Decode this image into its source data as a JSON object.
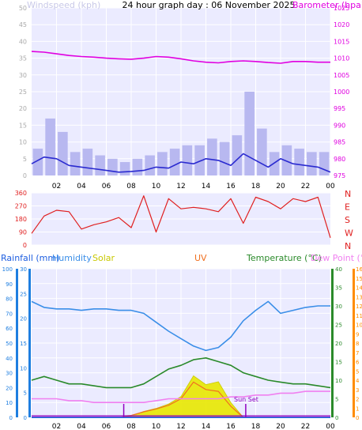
{
  "header": {
    "windspeed_label": "Windspeed (kph)",
    "title": "24 hour graph day : 06 November 2025",
    "barometer_label": "Barometer (hpa)"
  },
  "legend_lower": {
    "rainfall": "Rainfall (mm)",
    "humidity": "Humidity",
    "solar": "Solar",
    "uv": "UV",
    "temperature": "Temperature (°C)",
    "dewpoint": "Dew Point (°C)"
  },
  "annotation": {
    "sunset": "Sun Set"
  },
  "colors": {
    "background": "#ffffff",
    "plot_bg": "#ebebff",
    "grid": "#ffffff",
    "pink": "#e000e0",
    "wind_avg": "#2a2ad0",
    "wind_gust": "#b8b8f0",
    "direction": "#e02020",
    "humidity": "#3a8ee8",
    "solar": "#e8e800",
    "uv": "#f07020",
    "temperature": "#2a8a2a",
    "dewpoint": "#f080f0",
    "rain_axis": "#1e7ee0",
    "uv_axis": "#ff8c00",
    "sun_marker": "#9000c0"
  },
  "chart_data": [
    {
      "id": "wind_pressure",
      "type": "line",
      "title": "24 hour graph day : 06 November 2025",
      "x_ticks": [
        "02",
        "04",
        "06",
        "08",
        "10",
        "12",
        "14",
        "16",
        "18",
        "20",
        "22",
        "00"
      ],
      "x_hours": [
        0,
        1,
        2,
        3,
        4,
        5,
        6,
        7,
        8,
        9,
        10,
        11,
        12,
        13,
        14,
        15,
        16,
        17,
        18,
        19,
        20,
        21,
        22,
        23,
        24
      ],
      "left_axis": {
        "label": "Windspeed (kph)",
        "ticks": [
          0,
          5,
          10,
          15,
          20,
          25,
          30,
          35,
          40,
          45,
          50
        ],
        "range": [
          0,
          50
        ]
      },
      "right_axis": {
        "label": "Barometer (hpa)",
        "ticks": [
          975,
          980,
          985,
          990,
          995,
          1000,
          1005,
          1010,
          1015,
          1020,
          1025
        ],
        "range": [
          975,
          1025
        ]
      },
      "series": [
        {
          "name": "Barometer",
          "axis": "right",
          "values": [
            1012,
            1011.8,
            1011.3,
            1010.8,
            1010.5,
            1010.3,
            1010,
            1009.8,
            1009.7,
            1010,
            1010.5,
            1010.3,
            1009.8,
            1009.2,
            1008.8,
            1008.6,
            1009.0,
            1009.2,
            1009.0,
            1008.7,
            1008.5,
            1009.0,
            1009.0,
            1008.8,
            1008.8
          ]
        },
        {
          "name": "Wind avg",
          "axis": "left",
          "values": [
            3.5,
            5.5,
            5.0,
            3.0,
            2.5,
            2.0,
            1.5,
            1.0,
            1.2,
            1.5,
            2.5,
            2.2,
            4.0,
            3.5,
            5.0,
            4.5,
            3.0,
            6.5,
            4.5,
            2.5,
            5.0,
            3.5,
            3.0,
            2.5,
            1.0
          ]
        },
        {
          "name": "Wind gust",
          "axis": "left",
          "values": [
            8,
            17,
            13,
            7,
            8,
            6,
            5,
            4,
            5,
            6,
            7,
            8,
            9,
            9,
            11,
            10,
            12,
            25,
            14,
            7,
            9,
            8,
            7,
            7,
            6
          ]
        }
      ]
    },
    {
      "id": "wind_direction",
      "type": "line",
      "x_hours": [
        0,
        1,
        2,
        3,
        4,
        5,
        6,
        7,
        8,
        9,
        10,
        11,
        12,
        13,
        14,
        15,
        16,
        17,
        18,
        19,
        20,
        21,
        22,
        23,
        24
      ],
      "left_axis": {
        "ticks": [
          0,
          90,
          180,
          270,
          360
        ],
        "range": [
          0,
          360
        ]
      },
      "right_axis": {
        "ticks": [
          "N",
          "W",
          "S",
          "E",
          "N"
        ]
      },
      "series": [
        {
          "name": "Direction",
          "values": [
            80,
            200,
            240,
            230,
            110,
            140,
            160,
            190,
            120,
            340,
            90,
            320,
            250,
            260,
            250,
            230,
            320,
            150,
            330,
            300,
            250,
            320,
            300,
            330,
            50
          ]
        }
      ]
    },
    {
      "id": "temp_humidity",
      "type": "line",
      "x_ticks": [
        "02",
        "04",
        "06",
        "08",
        "10",
        "12",
        "14",
        "16",
        "18",
        "20",
        "22",
        "00"
      ],
      "x_hours": [
        0,
        1,
        2,
        3,
        4,
        5,
        6,
        7,
        8,
        9,
        10,
        11,
        12,
        13,
        14,
        15,
        16,
        17,
        18,
        19,
        20,
        21,
        22,
        23,
        24
      ],
      "humidity_axis": {
        "label": "Humidity",
        "ticks": [
          0,
          10,
          20,
          30,
          40,
          50,
          60,
          70,
          80,
          90,
          100
        ],
        "range": [
          0,
          100
        ]
      },
      "rain_axis": {
        "label": "Rainfall (mm)",
        "ticks": [
          0,
          5,
          10,
          15,
          20,
          25,
          30
        ],
        "range": [
          0,
          30
        ]
      },
      "temp_axis": {
        "label": "Temperature (°C)",
        "ticks": [
          0,
          5,
          10,
          15,
          20,
          25,
          30,
          35,
          40
        ],
        "range": [
          0,
          40
        ]
      },
      "uv_axis": {
        "label": "UV",
        "ticks": [
          0,
          1,
          2,
          3,
          4,
          5,
          6,
          7,
          8,
          9,
          10,
          11,
          12,
          13,
          14,
          15,
          16
        ],
        "range": [
          0,
          16
        ]
      },
      "series": [
        {
          "name": "Humidity",
          "axis": "humidity",
          "values": [
            78,
            74,
            73,
            73,
            72,
            73,
            73,
            72,
            72,
            70,
            64,
            58,
            53,
            48,
            45,
            47,
            54,
            65,
            72,
            78,
            70,
            72,
            74,
            75,
            75
          ]
        },
        {
          "name": "Temperature",
          "axis": "temp",
          "values": [
            10,
            11,
            10,
            9,
            9,
            8.5,
            8,
            8,
            8,
            9,
            11,
            13,
            14,
            15.5,
            16,
            15,
            14,
            12,
            11,
            10,
            9.5,
            9,
            9,
            8.5,
            8
          ]
        },
        {
          "name": "Dew Point",
          "axis": "temp",
          "values": [
            5,
            5,
            5,
            4.5,
            4.5,
            4,
            4,
            4,
            4,
            4,
            4.5,
            5,
            5,
            5,
            5,
            5,
            5.5,
            5.5,
            6,
            6,
            6.5,
            6.5,
            7,
            7,
            7
          ]
        },
        {
          "name": "Rainfall",
          "axis": "rain",
          "values": [
            0,
            0,
            0,
            0,
            0,
            0,
            0,
            0,
            0,
            0,
            0,
            0,
            0,
            0,
            0,
            0,
            0,
            0,
            0,
            0,
            0,
            0,
            0,
            0,
            0
          ]
        },
        {
          "name": "Solar",
          "axis": "humidity",
          "values": [
            0,
            0,
            0,
            0,
            0,
            0,
            0,
            0,
            1,
            4,
            6,
            9,
            14,
            28,
            22,
            24,
            10,
            0,
            0,
            0,
            0,
            0,
            0,
            0,
            0
          ]
        },
        {
          "name": "UV",
          "axis": "uv",
          "values": [
            0,
            0,
            0,
            0,
            0,
            0,
            0,
            0,
            0.2,
            0.6,
            0.9,
            1.3,
            2.0,
            3.8,
            3.0,
            2.8,
            1.2,
            0,
            0,
            0,
            0,
            0,
            0,
            0,
            0
          ]
        }
      ],
      "sun_events_hours": [
        7.4,
        17.2
      ],
      "sunset_label": "Sun Set"
    }
  ]
}
